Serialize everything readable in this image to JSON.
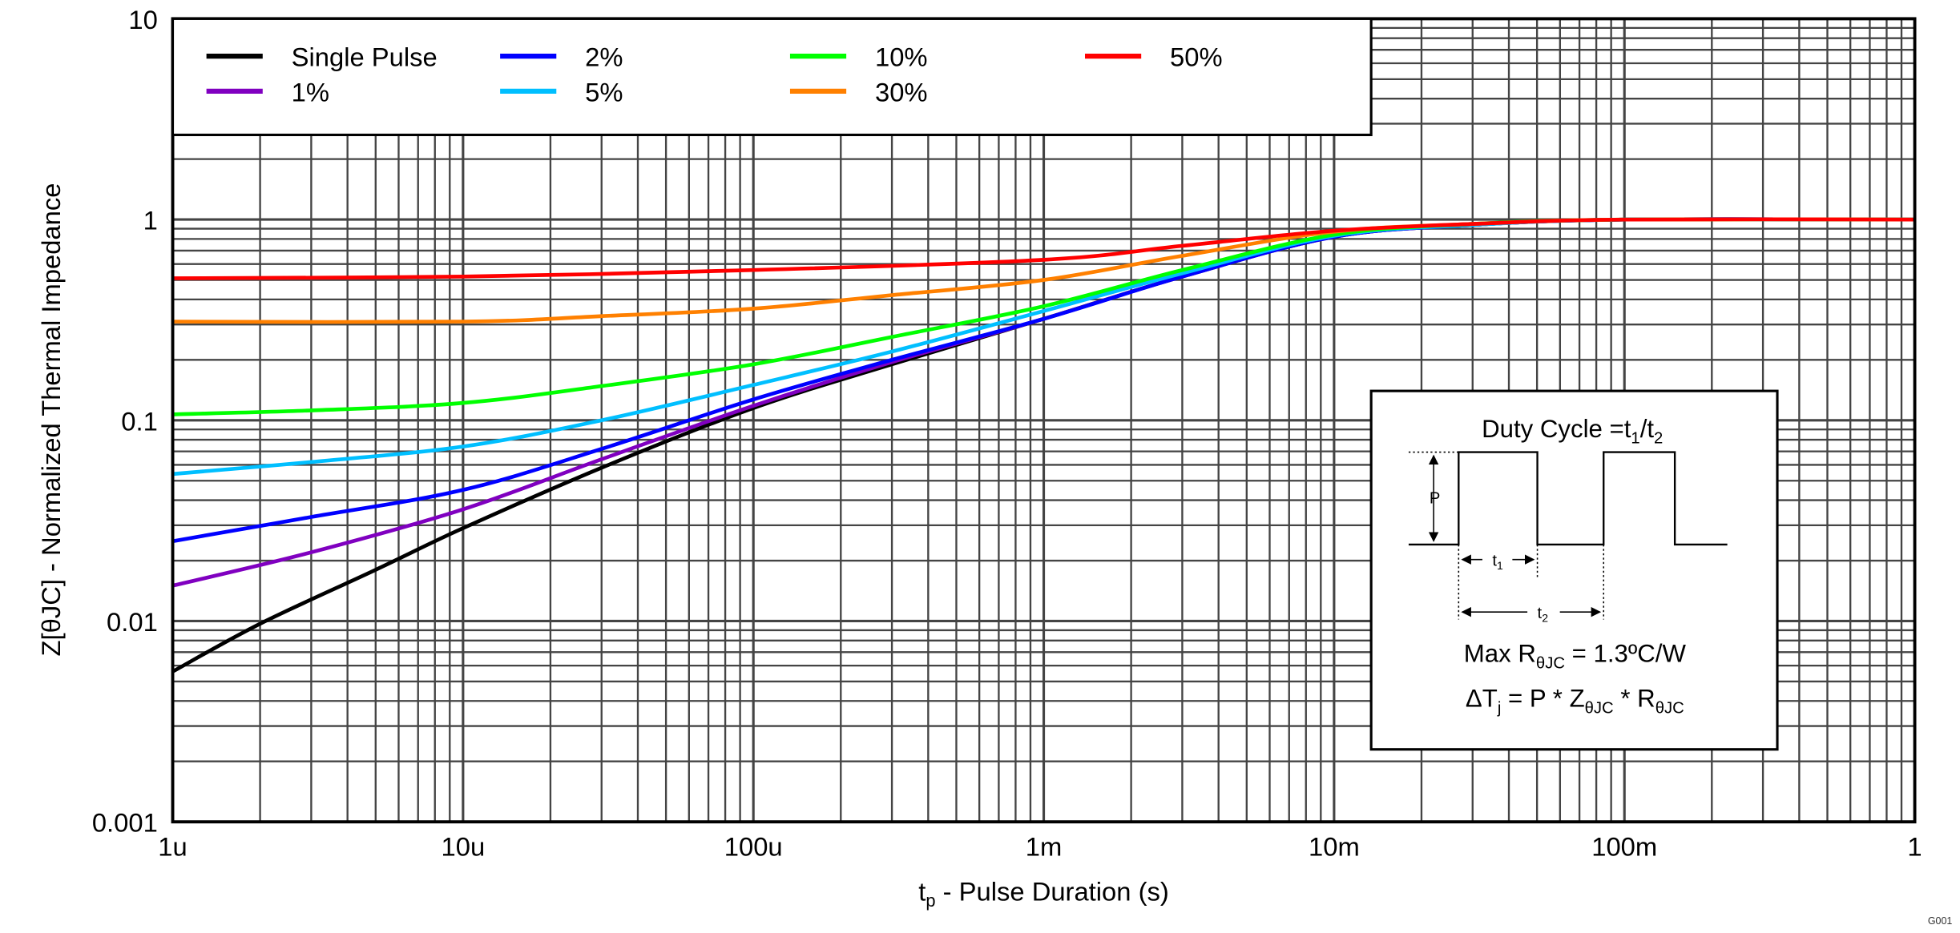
{
  "chart_data": {
    "type": "line",
    "title": "",
    "xlabel": {
      "main": "t",
      "sub": "p",
      "rest": " - Pulse Duration (s)"
    },
    "ylabel": "Z[θJC] - Normalized Thermal Impedance",
    "xscale": "log",
    "yscale": "log",
    "xlim": [
      1e-06,
      1
    ],
    "ylim": [
      0.001,
      10
    ],
    "grid": true,
    "legend_placement": "top-left",
    "x_ticks": [
      {
        "value": 1e-06,
        "label": "1u"
      },
      {
        "value": 1e-05,
        "label": "10u"
      },
      {
        "value": 0.0001,
        "label": "100u"
      },
      {
        "value": 0.001,
        "label": "1m"
      },
      {
        "value": 0.01,
        "label": "10m"
      },
      {
        "value": 0.1,
        "label": "100m"
      },
      {
        "value": 1,
        "label": "1"
      }
    ],
    "y_ticks": [
      {
        "value": 10,
        "label": "10"
      },
      {
        "value": 1,
        "label": "1"
      },
      {
        "value": 0.1,
        "label": "0.1"
      },
      {
        "value": 0.01,
        "label": "0.01"
      },
      {
        "value": 0.001,
        "label": "0.001"
      }
    ],
    "series": [
      {
        "name": "Single Pulse",
        "color": "#000000",
        "x": [
          1e-06,
          2e-06,
          5e-06,
          1e-05,
          3e-05,
          0.0001,
          0.0003,
          0.001,
          0.003,
          0.01,
          0.03,
          0.1,
          1
        ],
        "y": [
          0.0056,
          0.0097,
          0.018,
          0.029,
          0.058,
          0.115,
          0.19,
          0.32,
          0.52,
          0.82,
          0.94,
          1.0,
          1.0
        ]
      },
      {
        "name": "1%",
        "color": "#8000c0",
        "x": [
          1e-06,
          3e-06,
          1e-05,
          3e-05,
          0.0001,
          0.0003,
          0.001,
          0.003,
          0.01,
          0.03,
          0.1,
          1
        ],
        "y": [
          0.015,
          0.022,
          0.036,
          0.064,
          0.118,
          0.195,
          0.32,
          0.52,
          0.82,
          0.94,
          1.0,
          1.0
        ]
      },
      {
        "name": "2%",
        "color": "#0000ff",
        "x": [
          1e-06,
          3e-06,
          1e-05,
          3e-05,
          0.0001,
          0.0003,
          0.001,
          0.003,
          0.01,
          0.03,
          0.1,
          1
        ],
        "y": [
          0.025,
          0.033,
          0.045,
          0.072,
          0.127,
          0.2,
          0.32,
          0.52,
          0.82,
          0.94,
          1.0,
          1.0
        ]
      },
      {
        "name": "5%",
        "color": "#00bfff",
        "x": [
          1e-06,
          3e-06,
          1e-05,
          3e-05,
          0.0001,
          0.0003,
          0.001,
          0.003,
          0.01,
          0.03,
          0.1,
          1
        ],
        "y": [
          0.054,
          0.062,
          0.074,
          0.1,
          0.15,
          0.22,
          0.35,
          0.54,
          0.83,
          0.94,
          1.0,
          1.0
        ]
      },
      {
        "name": "10%",
        "color": "#00ff00",
        "x": [
          1e-06,
          3e-06,
          1e-05,
          3e-05,
          0.0001,
          0.0003,
          0.001,
          0.003,
          0.01,
          0.03,
          0.1,
          1
        ],
        "y": [
          0.107,
          0.112,
          0.122,
          0.148,
          0.19,
          0.26,
          0.37,
          0.56,
          0.84,
          0.95,
          1.0,
          1.0
        ]
      },
      {
        "name": "30%",
        "color": "#ff8000",
        "x": [
          1e-06,
          1e-05,
          3e-05,
          0.0001,
          0.0003,
          0.001,
          0.003,
          0.01,
          0.03,
          0.1,
          1
        ],
        "y": [
          0.31,
          0.31,
          0.33,
          0.36,
          0.42,
          0.5,
          0.66,
          0.87,
          0.95,
          1.0,
          1.0
        ]
      },
      {
        "name": "50%",
        "color": "#ff0000",
        "x": [
          1e-06,
          1e-05,
          0.0001,
          0.001,
          0.003,
          0.01,
          0.03,
          0.1,
          1
        ],
        "y": [
          0.51,
          0.52,
          0.56,
          0.63,
          0.74,
          0.88,
          0.95,
          1.0,
          1.0
        ]
      }
    ],
    "legend_order": [
      [
        0,
        2,
        4,
        6
      ],
      [
        1,
        3,
        5
      ]
    ],
    "inset": {
      "duty_cycle": {
        "label": "Duty Cycle =t",
        "s1": "1",
        "slash": "/t",
        "s2": "2"
      },
      "p_label": "P",
      "t1": {
        "main": "t",
        "sub": "1"
      },
      "t2": {
        "main": "t",
        "sub": "2"
      },
      "max_r": {
        "pre": "Max R",
        "sub": "θJC",
        "post": " = 1.3ºC/W"
      },
      "delta": {
        "pre": "ΔT",
        "sub1": "j",
        "mid1": " = P * Z",
        "sub2": "θJC",
        "mid2": " * R",
        "sub3": "θJC"
      }
    },
    "figure_id": "G001"
  }
}
